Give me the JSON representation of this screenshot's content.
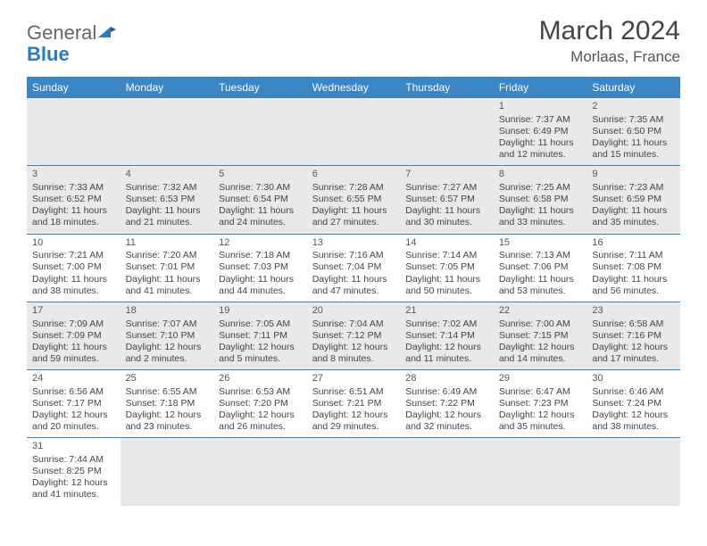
{
  "logo": {
    "general": "General",
    "blue": "Blue"
  },
  "title": {
    "month_year": "March 2024",
    "location": "Morlaas, France"
  },
  "colors": {
    "header_bg": "#3a85c4",
    "header_text": "#ffffff",
    "row_alt_bg": "#e9e9e9",
    "border": "#3a85c4",
    "text": "#444444",
    "logo_blue": "#2b7bbf",
    "logo_gray": "#666666"
  },
  "day_headers": [
    "Sunday",
    "Monday",
    "Tuesday",
    "Wednesday",
    "Thursday",
    "Friday",
    "Saturday"
  ],
  "weeks": [
    [
      null,
      null,
      null,
      null,
      null,
      {
        "n": "1",
        "sr": "Sunrise: 7:37 AM",
        "ss": "Sunset: 6:49 PM",
        "d1": "Daylight: 11 hours",
        "d2": "and 12 minutes."
      },
      {
        "n": "2",
        "sr": "Sunrise: 7:35 AM",
        "ss": "Sunset: 6:50 PM",
        "d1": "Daylight: 11 hours",
        "d2": "and 15 minutes."
      }
    ],
    [
      {
        "n": "3",
        "sr": "Sunrise: 7:33 AM",
        "ss": "Sunset: 6:52 PM",
        "d1": "Daylight: 11 hours",
        "d2": "and 18 minutes."
      },
      {
        "n": "4",
        "sr": "Sunrise: 7:32 AM",
        "ss": "Sunset: 6:53 PM",
        "d1": "Daylight: 11 hours",
        "d2": "and 21 minutes."
      },
      {
        "n": "5",
        "sr": "Sunrise: 7:30 AM",
        "ss": "Sunset: 6:54 PM",
        "d1": "Daylight: 11 hours",
        "d2": "and 24 minutes."
      },
      {
        "n": "6",
        "sr": "Sunrise: 7:28 AM",
        "ss": "Sunset: 6:55 PM",
        "d1": "Daylight: 11 hours",
        "d2": "and 27 minutes."
      },
      {
        "n": "7",
        "sr": "Sunrise: 7:27 AM",
        "ss": "Sunset: 6:57 PM",
        "d1": "Daylight: 11 hours",
        "d2": "and 30 minutes."
      },
      {
        "n": "8",
        "sr": "Sunrise: 7:25 AM",
        "ss": "Sunset: 6:58 PM",
        "d1": "Daylight: 11 hours",
        "d2": "and 33 minutes."
      },
      {
        "n": "9",
        "sr": "Sunrise: 7:23 AM",
        "ss": "Sunset: 6:59 PM",
        "d1": "Daylight: 11 hours",
        "d2": "and 35 minutes."
      }
    ],
    [
      {
        "n": "10",
        "sr": "Sunrise: 7:21 AM",
        "ss": "Sunset: 7:00 PM",
        "d1": "Daylight: 11 hours",
        "d2": "and 38 minutes."
      },
      {
        "n": "11",
        "sr": "Sunrise: 7:20 AM",
        "ss": "Sunset: 7:01 PM",
        "d1": "Daylight: 11 hours",
        "d2": "and 41 minutes."
      },
      {
        "n": "12",
        "sr": "Sunrise: 7:18 AM",
        "ss": "Sunset: 7:03 PM",
        "d1": "Daylight: 11 hours",
        "d2": "and 44 minutes."
      },
      {
        "n": "13",
        "sr": "Sunrise: 7:16 AM",
        "ss": "Sunset: 7:04 PM",
        "d1": "Daylight: 11 hours",
        "d2": "and 47 minutes."
      },
      {
        "n": "14",
        "sr": "Sunrise: 7:14 AM",
        "ss": "Sunset: 7:05 PM",
        "d1": "Daylight: 11 hours",
        "d2": "and 50 minutes."
      },
      {
        "n": "15",
        "sr": "Sunrise: 7:13 AM",
        "ss": "Sunset: 7:06 PM",
        "d1": "Daylight: 11 hours",
        "d2": "and 53 minutes."
      },
      {
        "n": "16",
        "sr": "Sunrise: 7:11 AM",
        "ss": "Sunset: 7:08 PM",
        "d1": "Daylight: 11 hours",
        "d2": "and 56 minutes."
      }
    ],
    [
      {
        "n": "17",
        "sr": "Sunrise: 7:09 AM",
        "ss": "Sunset: 7:09 PM",
        "d1": "Daylight: 11 hours",
        "d2": "and 59 minutes."
      },
      {
        "n": "18",
        "sr": "Sunrise: 7:07 AM",
        "ss": "Sunset: 7:10 PM",
        "d1": "Daylight: 12 hours",
        "d2": "and 2 minutes."
      },
      {
        "n": "19",
        "sr": "Sunrise: 7:05 AM",
        "ss": "Sunset: 7:11 PM",
        "d1": "Daylight: 12 hours",
        "d2": "and 5 minutes."
      },
      {
        "n": "20",
        "sr": "Sunrise: 7:04 AM",
        "ss": "Sunset: 7:12 PM",
        "d1": "Daylight: 12 hours",
        "d2": "and 8 minutes."
      },
      {
        "n": "21",
        "sr": "Sunrise: 7:02 AM",
        "ss": "Sunset: 7:14 PM",
        "d1": "Daylight: 12 hours",
        "d2": "and 11 minutes."
      },
      {
        "n": "22",
        "sr": "Sunrise: 7:00 AM",
        "ss": "Sunset: 7:15 PM",
        "d1": "Daylight: 12 hours",
        "d2": "and 14 minutes."
      },
      {
        "n": "23",
        "sr": "Sunrise: 6:58 AM",
        "ss": "Sunset: 7:16 PM",
        "d1": "Daylight: 12 hours",
        "d2": "and 17 minutes."
      }
    ],
    [
      {
        "n": "24",
        "sr": "Sunrise: 6:56 AM",
        "ss": "Sunset: 7:17 PM",
        "d1": "Daylight: 12 hours",
        "d2": "and 20 minutes."
      },
      {
        "n": "25",
        "sr": "Sunrise: 6:55 AM",
        "ss": "Sunset: 7:18 PM",
        "d1": "Daylight: 12 hours",
        "d2": "and 23 minutes."
      },
      {
        "n": "26",
        "sr": "Sunrise: 6:53 AM",
        "ss": "Sunset: 7:20 PM",
        "d1": "Daylight: 12 hours",
        "d2": "and 26 minutes."
      },
      {
        "n": "27",
        "sr": "Sunrise: 6:51 AM",
        "ss": "Sunset: 7:21 PM",
        "d1": "Daylight: 12 hours",
        "d2": "and 29 minutes."
      },
      {
        "n": "28",
        "sr": "Sunrise: 6:49 AM",
        "ss": "Sunset: 7:22 PM",
        "d1": "Daylight: 12 hours",
        "d2": "and 32 minutes."
      },
      {
        "n": "29",
        "sr": "Sunrise: 6:47 AM",
        "ss": "Sunset: 7:23 PM",
        "d1": "Daylight: 12 hours",
        "d2": "and 35 minutes."
      },
      {
        "n": "30",
        "sr": "Sunrise: 6:46 AM",
        "ss": "Sunset: 7:24 PM",
        "d1": "Daylight: 12 hours",
        "d2": "and 38 minutes."
      }
    ],
    [
      {
        "n": "31",
        "sr": "Sunrise: 7:44 AM",
        "ss": "Sunset: 8:25 PM",
        "d1": "Daylight: 12 hours",
        "d2": "and 41 minutes."
      },
      null,
      null,
      null,
      null,
      null,
      null
    ]
  ]
}
